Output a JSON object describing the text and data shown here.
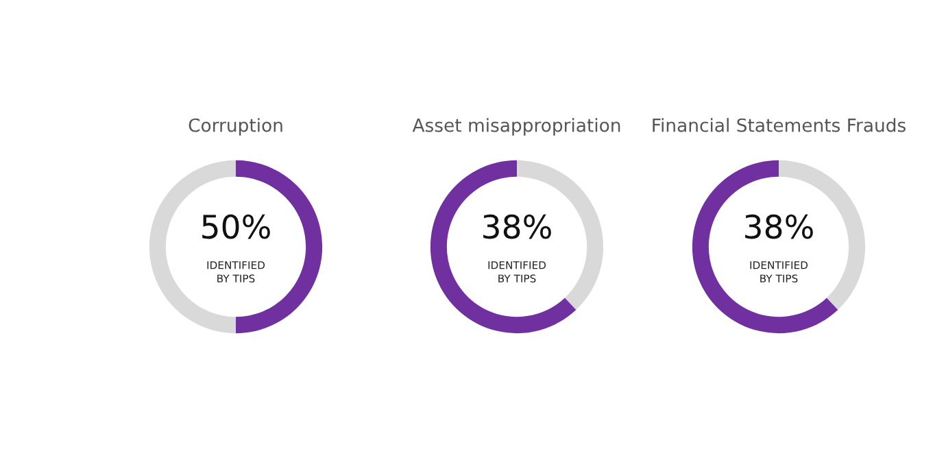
{
  "chart_data": [
    {
      "type": "donut",
      "title": "Corruption",
      "categories": [
        null,
        null
      ],
      "values": [
        50,
        50
      ],
      "colors": [
        "#7030a0",
        "#d9d9d9"
      ],
      "annotations": [
        "50%",
        "IDENTIFIED\nBY TIPS"
      ]
    },
    {
      "type": "donut",
      "title": "Asset misappropriation",
      "categories": [
        null,
        null
      ],
      "values": [
        38,
        62
      ],
      "colors": [
        "#d9d9d9",
        "#7030a0"
      ],
      "annotations": [
        "38%",
        "IDENTIFIED\nBY TIPS"
      ]
    },
    {
      "type": "donut",
      "title": "Financial Statements Frauds",
      "categories": [
        null,
        null
      ],
      "values": [
        38,
        62
      ],
      "colors": [
        "#d9d9d9",
        "#7030a0"
      ],
      "annotations": [
        "38%",
        "IDENTIFIED\nBY TIPS"
      ]
    }
  ]
}
